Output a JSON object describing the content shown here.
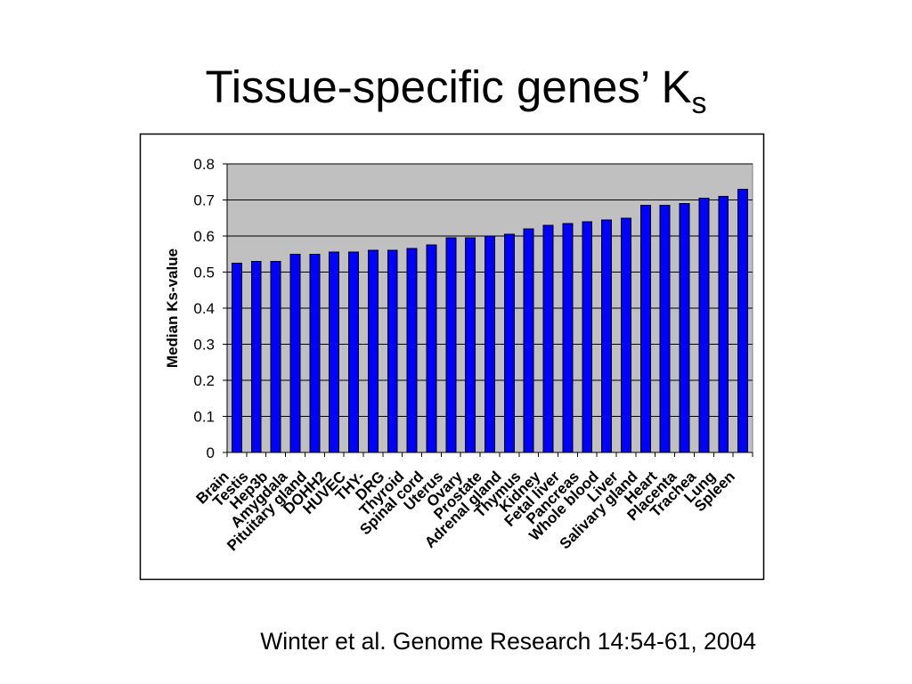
{
  "slide": {
    "citation": "Winter et al. Genome Research 14:54-61, 2004"
  },
  "chart_data": {
    "type": "bar",
    "title": "Tissue-specific genes’ K",
    "title_subscript": "s",
    "ylabel": "Median Ks-value",
    "ylim": [
      0,
      0.8
    ],
    "yticks": [
      0,
      0.1,
      0.2,
      0.3,
      0.4,
      0.5,
      0.6,
      0.7,
      0.8
    ],
    "grid": true,
    "categories": [
      "Brain",
      "Testis",
      "Hep3b",
      "Amygdala",
      "Pituitary gland",
      "DOHH2",
      "HUVEC",
      "THY-",
      "DRG",
      "Thyroid",
      "Spinal cord",
      "Uterus",
      "Ovary",
      "Prostate",
      "Adrenal gland",
      "Thymus",
      "Kidney",
      "Fetal liver",
      "Pancreas",
      "Whole blood",
      "Liver",
      "Salivary gland",
      "Heart",
      "Placenta",
      "Trachea",
      "Lung",
      "Spleen"
    ],
    "values": [
      0.525,
      0.53,
      0.53,
      0.55,
      0.55,
      0.555,
      0.555,
      0.56,
      0.56,
      0.565,
      0.575,
      0.595,
      0.595,
      0.6,
      0.605,
      0.62,
      0.63,
      0.635,
      0.64,
      0.645,
      0.65,
      0.685,
      0.685,
      0.69,
      0.705,
      0.71,
      0.73
    ],
    "colors": {
      "bar": "#0000FF",
      "plot_background": "#C0C0C0",
      "gridline": "#000000"
    }
  }
}
